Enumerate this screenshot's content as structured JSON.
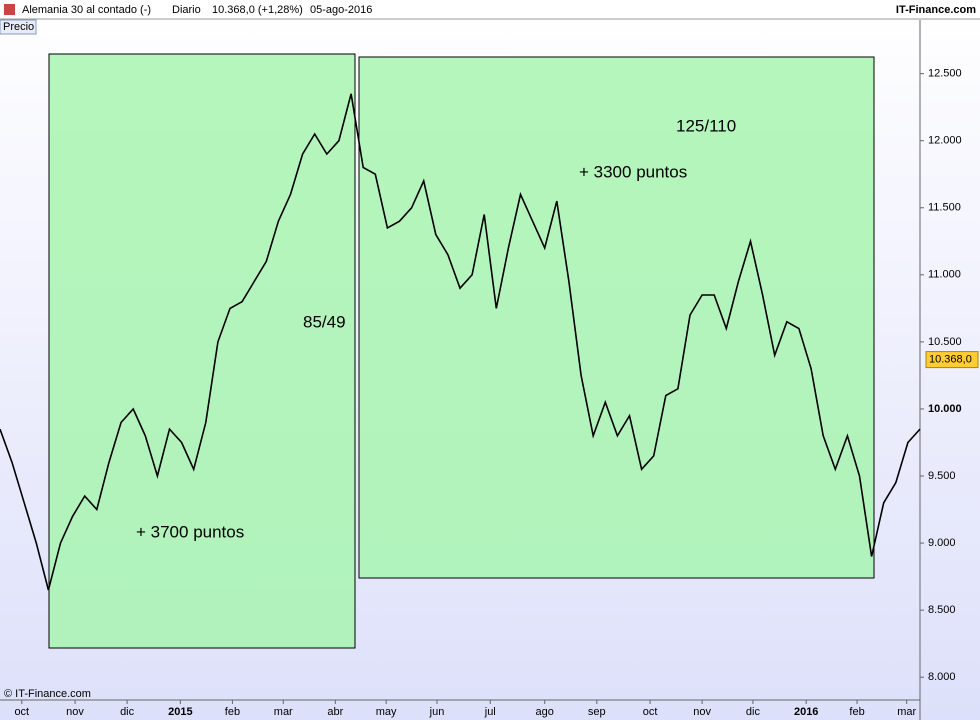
{
  "header": {
    "instrument": "Alemania 30 al contado (-)",
    "period": "Diario",
    "quote": "10.368,0 (+1,28%)",
    "date": "05-ago-2016",
    "site": "IT-Finance.com",
    "panel": "Precio",
    "copyright": "© IT-Finance.com"
  },
  "chart_data": {
    "type": "line",
    "series": [
      {
        "name": "Precio",
        "color": "#000000",
        "values": [
          9850,
          9600,
          9300,
          9000,
          8650,
          9000,
          9200,
          9350,
          9250,
          9600,
          9900,
          10000,
          9800,
          9500,
          9850,
          9750,
          9550,
          9900,
          10500,
          10750,
          10800,
          10950,
          11100,
          11400,
          11600,
          11900,
          12050,
          11900,
          12000,
          12350,
          11800,
          11750,
          11350,
          11400,
          11500,
          11700,
          11300,
          11150,
          10900,
          11000,
          11450,
          10750,
          11200,
          11600,
          11400,
          11200,
          11550,
          10950,
          10250,
          9800,
          10050,
          9800,
          9950,
          9550,
          9650,
          10100,
          10150,
          10700,
          10850,
          10850,
          10600,
          10950,
          11250,
          10850,
          10400,
          10650,
          10600,
          10300,
          9800,
          9550,
          9800,
          9500,
          8900,
          9300,
          9450,
          9750,
          9850
        ]
      }
    ],
    "xlim": [
      0,
      76
    ],
    "xticks": [
      {
        "value": 1.8,
        "label": "oct"
      },
      {
        "value": 6.2,
        "label": "nov"
      },
      {
        "value": 10.5,
        "label": "dic"
      },
      {
        "value": 14.9,
        "label": "2015"
      },
      {
        "value": 19.2,
        "label": "feb"
      },
      {
        "value": 23.4,
        "label": "mar"
      },
      {
        "value": 27.7,
        "label": "abr"
      },
      {
        "value": 31.9,
        "label": "may"
      },
      {
        "value": 36.1,
        "label": "jun"
      },
      {
        "value": 40.5,
        "label": "jul"
      },
      {
        "value": 45,
        "label": "ago"
      },
      {
        "value": 49.3,
        "label": "sep"
      },
      {
        "value": 53.7,
        "label": "oct"
      },
      {
        "value": 58,
        "label": "nov"
      },
      {
        "value": 62.2,
        "label": "dic"
      },
      {
        "value": 66.6,
        "label": "2016"
      },
      {
        "value": 70.8,
        "label": "feb"
      },
      {
        "value": 74.9,
        "label": "mar"
      }
    ],
    "ylim": [
      7830,
      12900
    ],
    "yticks": [
      {
        "value": 8000,
        "label": "8.000"
      },
      {
        "value": 8500,
        "label": "8.500"
      },
      {
        "value": 9000,
        "label": "9.000"
      },
      {
        "value": 9500,
        "label": "9.500"
      },
      {
        "value": 10000,
        "label": "10.000"
      },
      {
        "value": 10500,
        "label": "10.500"
      },
      {
        "value": 11000,
        "label": "11.000"
      },
      {
        "value": 11500,
        "label": "11.500"
      },
      {
        "value": 12000,
        "label": "12.000"
      },
      {
        "value": 12500,
        "label": "12.500"
      }
    ],
    "last_price": {
      "value": 10368,
      "label": "10.368,0"
    },
    "annotations": [
      "+ 3700 puntos",
      "85/49",
      "125/110",
      "+ 3300 puntos"
    ]
  }
}
